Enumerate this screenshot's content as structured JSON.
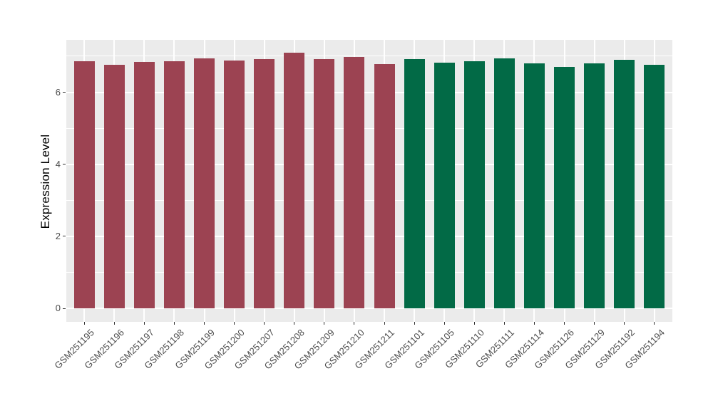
{
  "chart_data": {
    "type": "bar",
    "title": "",
    "xlabel": "",
    "ylabel": "Expression Level",
    "categories": [
      "GSM251195",
      "GSM251196",
      "GSM251197",
      "GSM251198",
      "GSM251199",
      "GSM251200",
      "GSM251207",
      "GSM251208",
      "GSM251209",
      "GSM251210",
      "GSM251211",
      "GSM251101",
      "GSM251105",
      "GSM251110",
      "GSM251111",
      "GSM251114",
      "GSM251126",
      "GSM251129",
      "GSM251192",
      "GSM251194"
    ],
    "values": [
      6.86,
      6.76,
      6.85,
      6.87,
      6.93,
      6.89,
      6.92,
      7.09,
      6.92,
      6.97,
      6.79,
      6.92,
      6.83,
      6.86,
      6.94,
      6.8,
      6.71,
      6.81,
      6.9,
      6.77
    ],
    "bar_group": [
      0,
      0,
      0,
      0,
      0,
      0,
      0,
      0,
      0,
      0,
      0,
      1,
      1,
      1,
      1,
      1,
      1,
      1,
      1,
      1
    ],
    "group_colors": [
      "#9C4352",
      "#026A46"
    ],
    "yticks": [
      0,
      2,
      4,
      6
    ],
    "yticks_minor": [
      1,
      3,
      5,
      7
    ],
    "ylim": [
      -0.37,
      7.45
    ],
    "bar_width_fraction": 0.7,
    "legend": "none",
    "grid": "on",
    "panel_bg": "#EBEBEB",
    "grid_color": "#FFFFFF",
    "tick_label_color": "#4D4D4D",
    "axis_title_color": "#000000"
  }
}
